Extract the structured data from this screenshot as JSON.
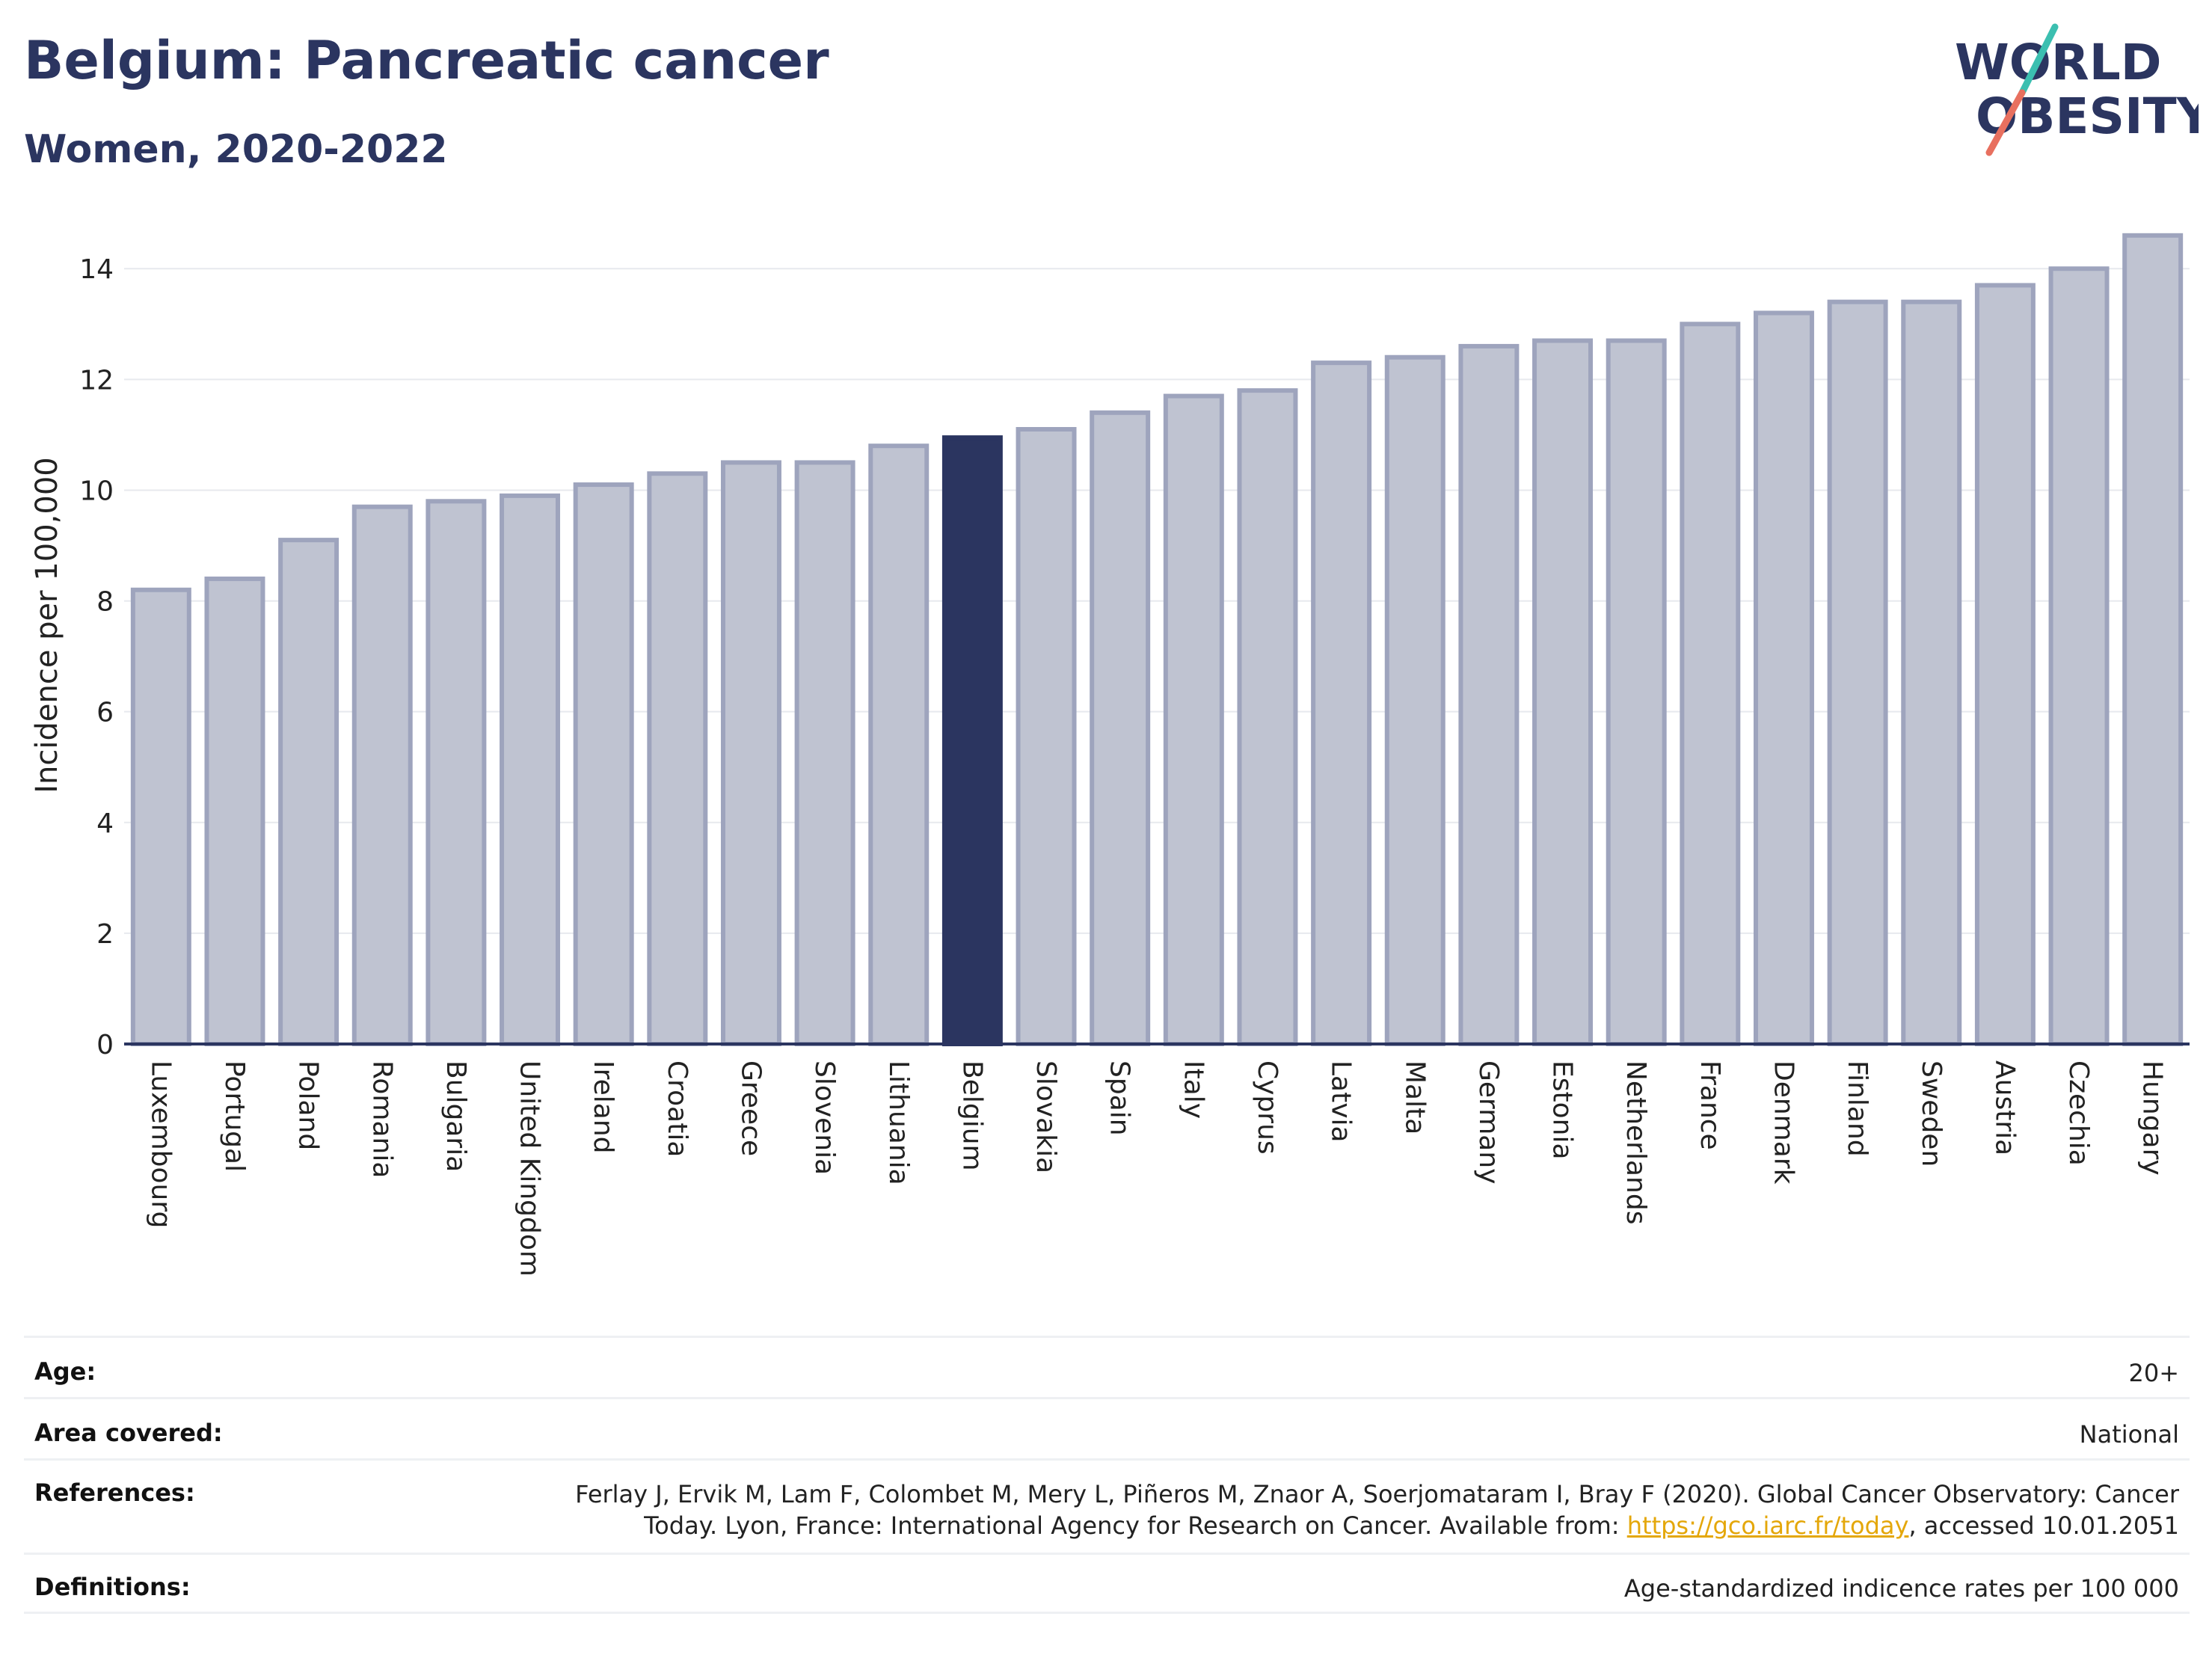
{
  "header": {
    "title": "Belgium: Pancreatic cancer",
    "subtitle": "Women, 2020-2022"
  },
  "logo": {
    "line1": "WORLD",
    "line2": "OBESITY",
    "colors": {
      "text": "#2b3560",
      "slash_teal": "#3bbfb0",
      "slash_coral": "#e8705f"
    }
  },
  "chart_data": {
    "type": "bar",
    "ylabel": "Incidence per 100,000",
    "xlabel": "",
    "ylim": [
      0,
      14.8
    ],
    "yticks": [
      0,
      2,
      4,
      6,
      8,
      10,
      12,
      14
    ],
    "grid": true,
    "highlight": "Belgium",
    "colors": {
      "bar": "#bfc3d1",
      "bar_edge": "#9ea4bd",
      "highlight": "#2b3560",
      "axis": "#2b3560",
      "grid": "#e7e9ee"
    },
    "categories": [
      "Luxembourg",
      "Portugal",
      "Poland",
      "Romania",
      "Bulgaria",
      "United Kingdom",
      "Ireland",
      "Croatia",
      "Greece",
      "Slovenia",
      "Lithuania",
      "Belgium",
      "Slovakia",
      "Spain",
      "Italy",
      "Cyprus",
      "Latvia",
      "Malta",
      "Germany",
      "Estonia",
      "Netherlands",
      "France",
      "Denmark",
      "Finland",
      "Sweden",
      "Austria",
      "Czechia",
      "Hungary"
    ],
    "values": [
      8.2,
      8.4,
      9.1,
      9.7,
      9.8,
      9.9,
      10.1,
      10.3,
      10.5,
      10.5,
      10.8,
      10.95,
      11.1,
      11.4,
      11.7,
      11.8,
      12.3,
      12.4,
      12.6,
      12.7,
      12.7,
      13.0,
      13.2,
      13.4,
      13.4,
      13.7,
      14.0,
      14.6
    ]
  },
  "info": {
    "age_label": "Age:",
    "age_value": "20+",
    "area_label": "Area covered:",
    "area_value": "National",
    "refs_label": "References:",
    "refs_text_1": "Ferlay J, Ervik M, Lam F, Colombet M, Mery L, Piñeros M, Znaor A, Soerjomataram I, Bray F (2020). Global Cancer Observatory: Cancer Today. Lyon, France: International Agency for Research on Cancer. Available from: ",
    "refs_link": "https://gco.iarc.fr/today",
    "refs_text_2": ", accessed 10.01.2051",
    "defs_label": "Definitions:",
    "defs_value": "Age-standardized indicence rates per 100 000"
  }
}
